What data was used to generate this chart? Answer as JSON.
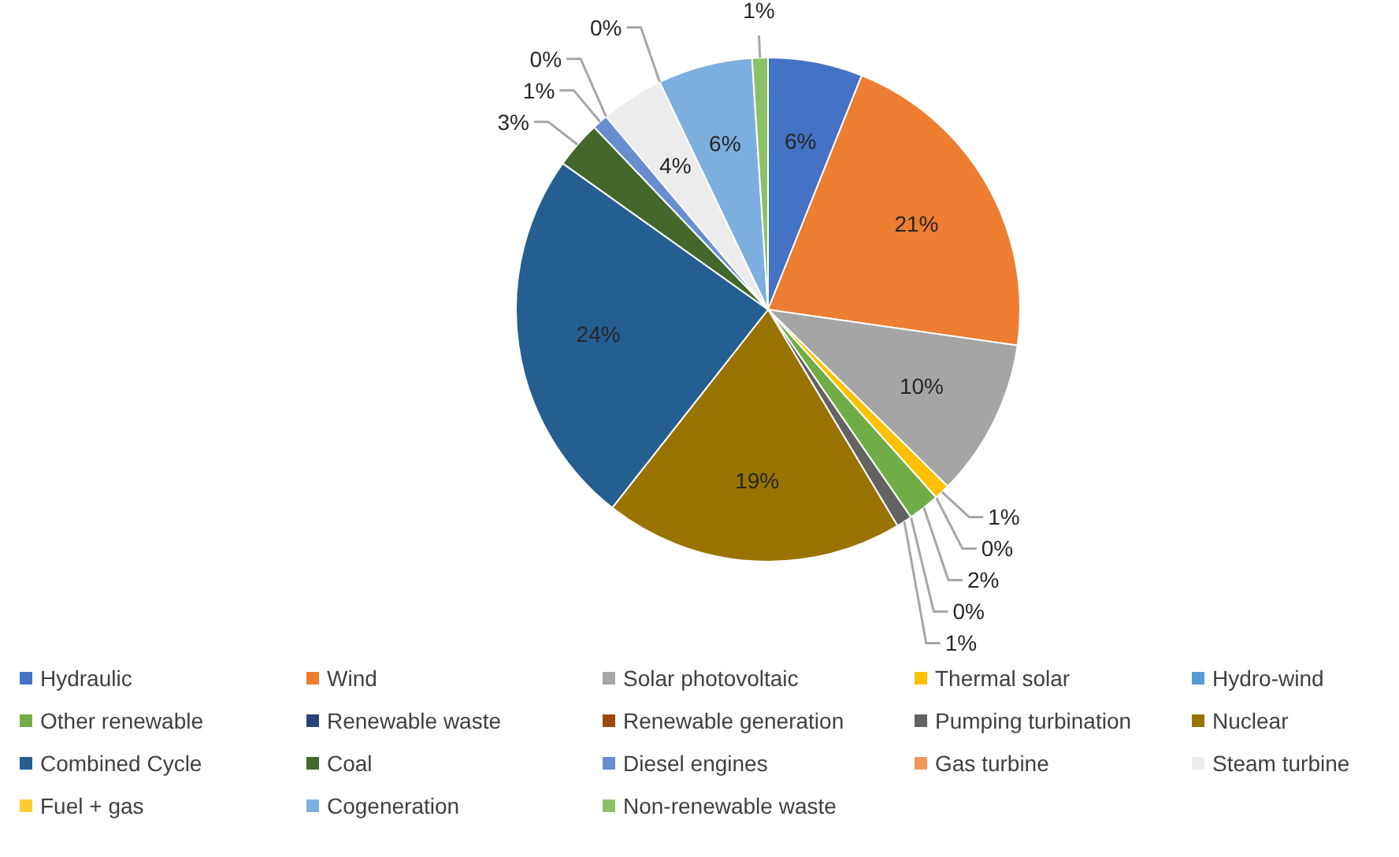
{
  "chart_data": {
    "type": "pie",
    "categories": [
      "Hydraulic",
      "Wind",
      "Solar photovoltaic",
      "Thermal solar",
      "Hydro-wind",
      "Other renewable",
      "Renewable waste",
      "Renewable generation",
      "Pumping turbination",
      "Nuclear",
      "Combined Cycle",
      "Coal",
      "Diesel engines",
      "Gas turbine",
      "Steam turbine",
      "Fuel + gas",
      "Cogeneration",
      "Non-renewable waste"
    ],
    "values": [
      6,
      21,
      10,
      1,
      0,
      2,
      0,
      0,
      1,
      19,
      24,
      3,
      1,
      0,
      4,
      0,
      6,
      1
    ],
    "value_labels": [
      "6%",
      "21%",
      "10%",
      "1%",
      "0%",
      "2%",
      "0%",
      null,
      "1%",
      "19%",
      "24%",
      "3%",
      "1%",
      "0%",
      "4%",
      "0%",
      "6%",
      "1%"
    ],
    "colors": [
      "#4472c4",
      "#ed7d31",
      "#a5a5a5",
      "#ffc000",
      "#5b9bd5",
      "#70ad47",
      "#264478",
      "#9e480e",
      "#636363",
      "#997300",
      "#255e91",
      "#43682b",
      "#698ed0",
      "#f1975a",
      "#ececec",
      "#ffcd33",
      "#7cafdd",
      "#8cc168"
    ],
    "legend": "bottom"
  }
}
